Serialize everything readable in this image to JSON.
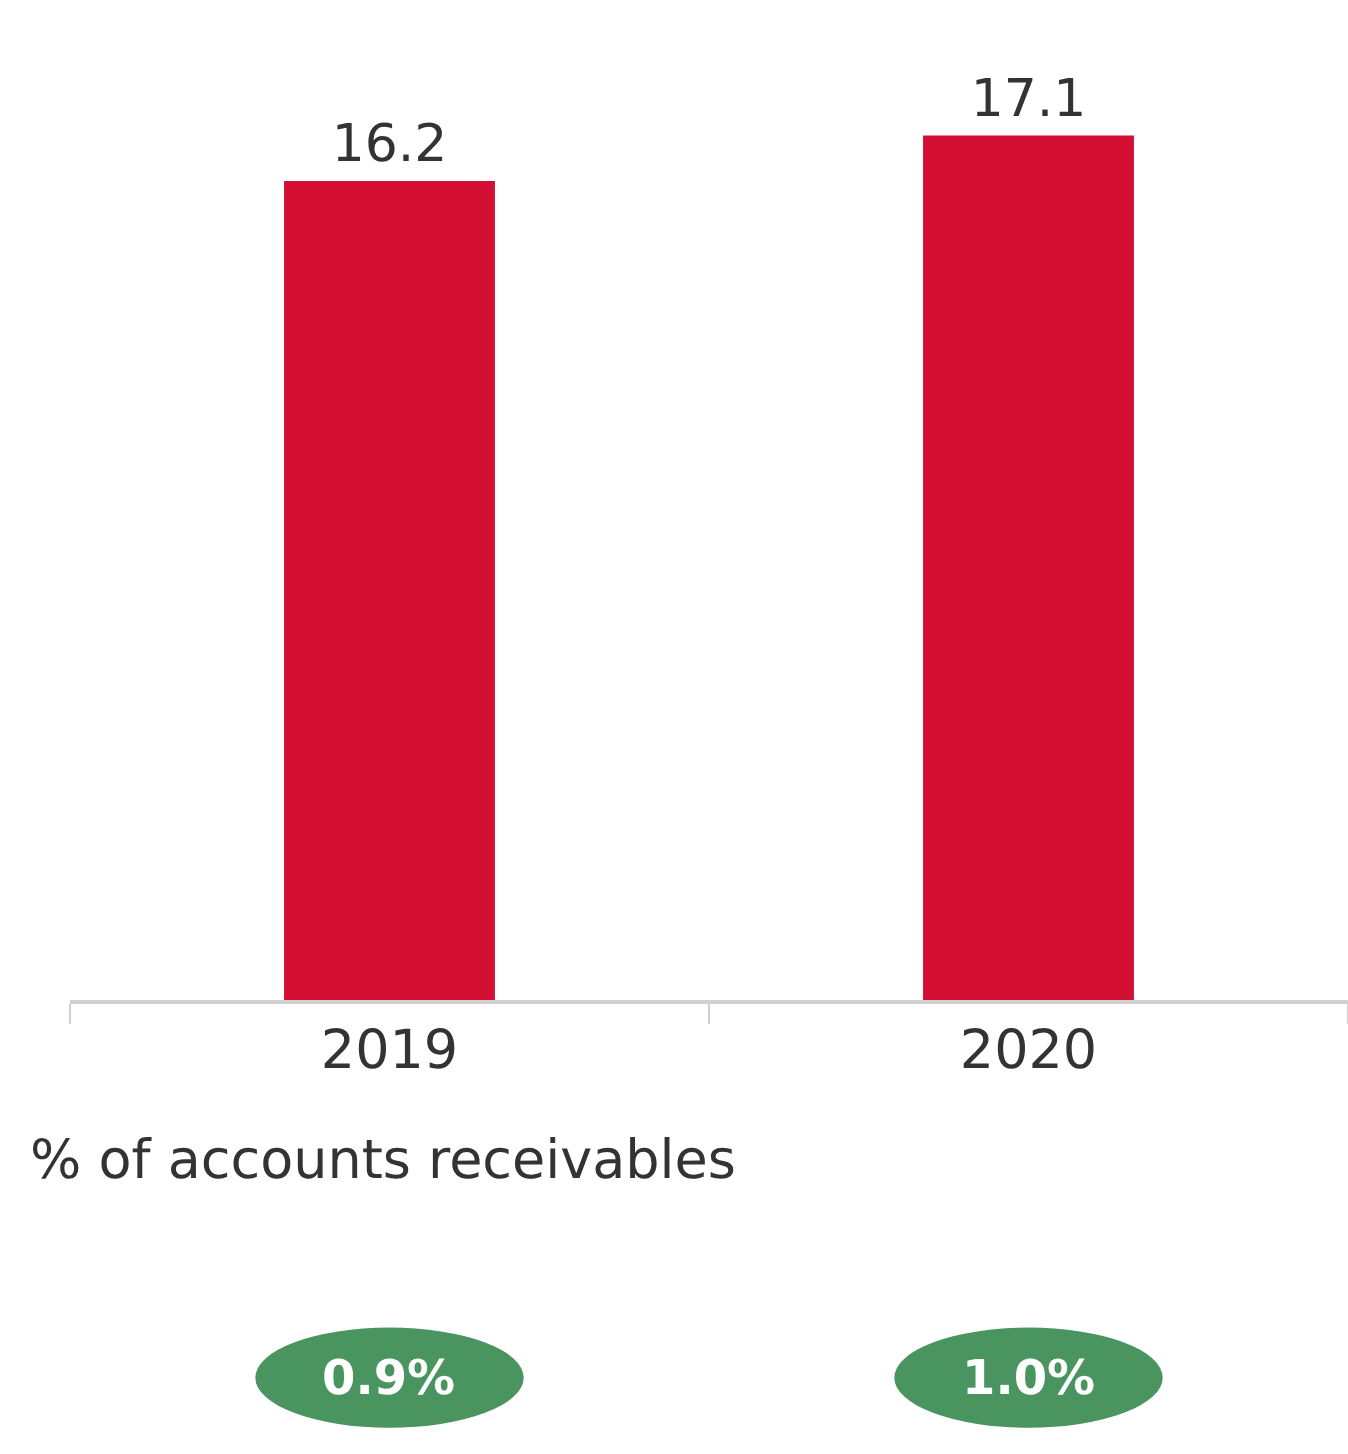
{
  "chart_data": {
    "type": "bar",
    "categories": [
      "2019",
      "2020"
    ],
    "values": [
      16.2,
      17.1
    ],
    "color": "#d31034",
    "data_labels": true,
    "annotations": [
      "% of accounts receivables",
      "0.9%",
      "1.0%"
    ]
  }
}
